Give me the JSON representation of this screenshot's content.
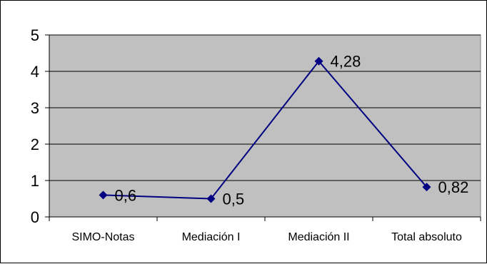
{
  "chart_data": {
    "type": "line",
    "categories": [
      "SIMO-Notas",
      "Mediación I",
      "Mediación II",
      "Total absoluto"
    ],
    "series": [
      {
        "values": [
          0.6,
          0.5,
          4.28,
          0.82
        ]
      }
    ],
    "data_labels": [
      "0,6",
      "0,5",
      "4,28",
      "0,82"
    ],
    "y_tick_labels": [
      "0",
      "1",
      "2",
      "3",
      "4",
      "5"
    ],
    "ylim": [
      0,
      5
    ],
    "y_ticks": [
      0,
      1,
      2,
      3,
      4,
      5
    ],
    "grid": true,
    "legend": "none",
    "colors": {
      "plot_background": "#c0c0c0",
      "line": "#000080",
      "gridline": "#000000"
    }
  }
}
